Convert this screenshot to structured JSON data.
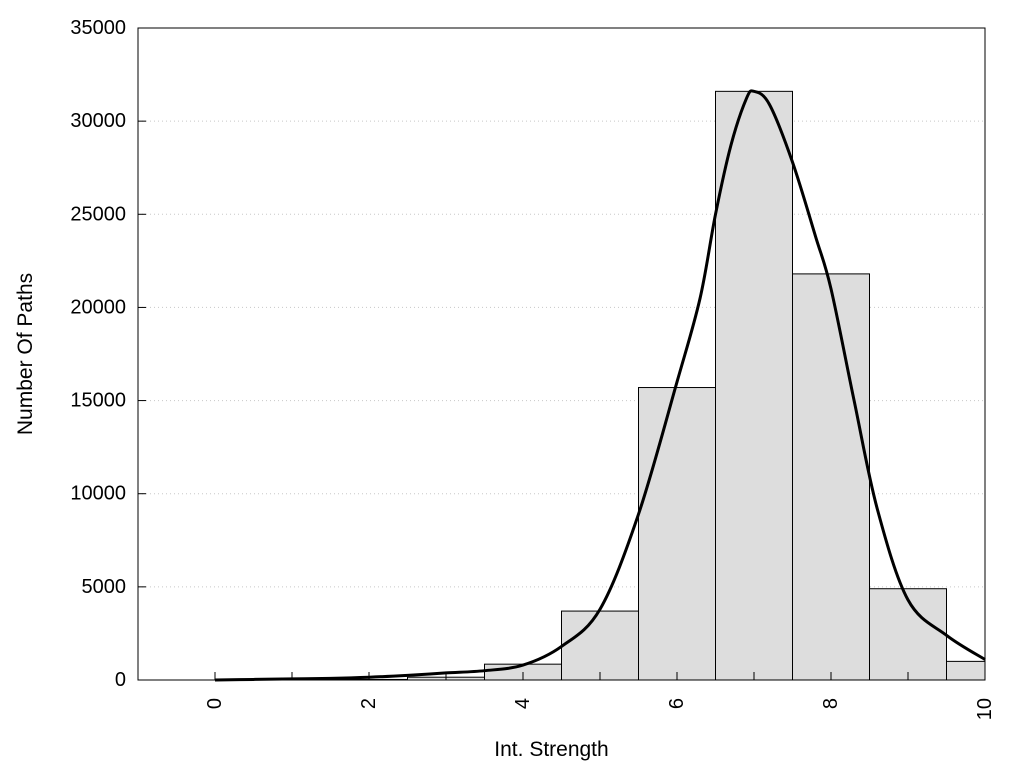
{
  "chart_data": {
    "type": "bar",
    "title": "",
    "xlabel": "Int. Strength",
    "ylabel": "Number Of Paths",
    "xlim": [
      -1,
      10
    ],
    "ylim": [
      0,
      35000
    ],
    "grid": "horizontal-dotted",
    "x_ticks": [
      "0",
      "2",
      "4",
      "6",
      "8",
      "10"
    ],
    "y_ticks": [
      "0",
      "5000",
      "10000",
      "15000",
      "20000",
      "25000",
      "30000",
      "35000"
    ],
    "bar_color": "#dddddd",
    "bars": [
      {
        "x": 0,
        "value": 0
      },
      {
        "x": 1,
        "value": 0
      },
      {
        "x": 2,
        "value": 30
      },
      {
        "x": 3,
        "value": 150
      },
      {
        "x": 4,
        "value": 850
      },
      {
        "x": 5,
        "value": 3700
      },
      {
        "x": 6,
        "value": 15700
      },
      {
        "x": 7,
        "value": 31600
      },
      {
        "x": 8,
        "value": 21800
      },
      {
        "x": 9,
        "value": 4900
      },
      {
        "x": 10,
        "value": 1000
      }
    ],
    "curve": {
      "x": [
        0,
        0.5,
        1,
        1.5,
        2,
        2.5,
        3,
        3.5,
        4,
        4.5,
        5,
        5.5,
        6,
        6.3,
        6.5,
        6.7,
        6.9,
        7,
        7.2,
        7.5,
        7.8,
        8,
        8.3,
        8.6,
        9,
        9.5,
        10
      ],
      "y": [
        0,
        30,
        60,
        90,
        150,
        250,
        380,
        500,
        800,
        1800,
        3800,
        8900,
        16000,
        20500,
        25000,
        28700,
        31200,
        31600,
        30900,
        27800,
        23800,
        21000,
        15000,
        9200,
        4300,
        2400,
        1100
      ]
    }
  }
}
